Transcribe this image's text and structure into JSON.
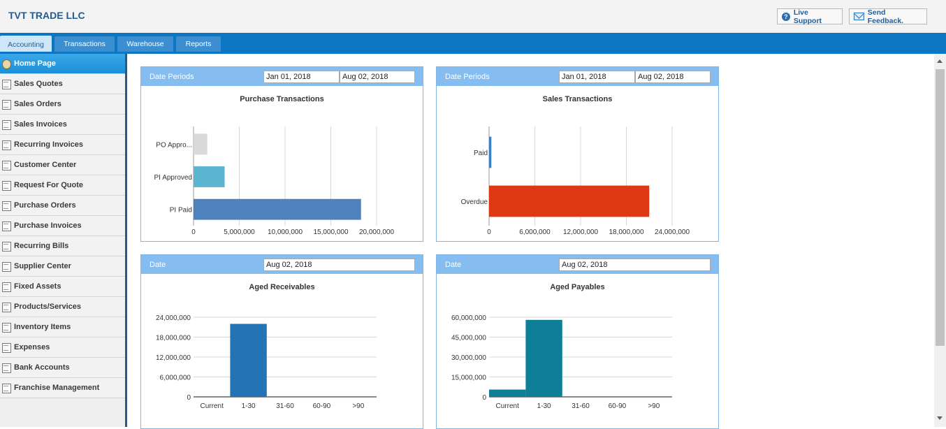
{
  "header": {
    "company": "TVT TRADE LLC",
    "live_support": "Live Support",
    "send_feedback": "Send Feedback."
  },
  "tabs": [
    "Accounting",
    "Transactions",
    "Warehouse",
    "Reports"
  ],
  "sidebar": {
    "items": [
      {
        "label": "Home Page",
        "icon": "home-icon"
      },
      {
        "label": "Sales Quotes",
        "icon": "document-icon"
      },
      {
        "label": "Sales Orders",
        "icon": "document-icon"
      },
      {
        "label": "Sales Invoices",
        "icon": "document-icon"
      },
      {
        "label": "Recurring Invoices",
        "icon": "document-icon"
      },
      {
        "label": "Customer Center",
        "icon": "printer-icon"
      },
      {
        "label": "Request For Quote",
        "icon": "printer-icon"
      },
      {
        "label": "Purchase Orders",
        "icon": "printer-icon"
      },
      {
        "label": "Purchase Invoices",
        "icon": "printer-icon"
      },
      {
        "label": "Recurring Bills",
        "icon": "printer-icon"
      },
      {
        "label": "Supplier Center",
        "icon": "printer-icon"
      },
      {
        "label": "Fixed Assets",
        "icon": "calculator-icon"
      },
      {
        "label": "Products/Services",
        "icon": "printer-icon"
      },
      {
        "label": "Inventory Items",
        "icon": "printer-icon"
      },
      {
        "label": "Expenses",
        "icon": "calculator-icon"
      },
      {
        "label": "Bank Accounts",
        "icon": "bank-icon"
      },
      {
        "label": "Franchise Management",
        "icon": "document-icon"
      }
    ]
  },
  "panels": {
    "purchase": {
      "label": "Date Periods",
      "from": "Jan 01, 2018",
      "to": "Aug 02, 2018",
      "title": "Purchase Transactions"
    },
    "sales": {
      "label": "Date Periods",
      "from": "Jan 01, 2018",
      "to": "Aug 02, 2018",
      "title": "Sales Transactions"
    },
    "receivables": {
      "label": "Date",
      "date": "Aug 02, 2018",
      "title": "Aged Receivables"
    },
    "payables": {
      "label": "Date",
      "date": "Aug 02, 2018",
      "title": "Aged Payables"
    }
  },
  "chart_data": [
    {
      "type": "bar",
      "orientation": "horizontal",
      "title": "Purchase Transactions",
      "categories": [
        "PO Appro...",
        "PI Approved",
        "PI Paid"
      ],
      "values": [
        1500000,
        3400000,
        18300000
      ],
      "colors": [
        "#d9d9d9",
        "#5bb5d0",
        "#4f81bd"
      ],
      "xlim": [
        0,
        20000000
      ],
      "x_ticks": [
        "0",
        "5,000,000",
        "10,000,000",
        "15,000,000",
        "20,000,000"
      ],
      "grid": true
    },
    {
      "type": "bar",
      "orientation": "horizontal",
      "title": "Sales Transactions",
      "categories": [
        "Paid",
        "Overdue"
      ],
      "values": [
        300000,
        21000000
      ],
      "colors": [
        "#3b7fc4",
        "#dd3a13"
      ],
      "xlim": [
        0,
        24000000
      ],
      "x_ticks": [
        "0",
        "6,000,000",
        "12,000,000",
        "18,000,000",
        "24,000,000"
      ],
      "grid": true
    },
    {
      "type": "bar",
      "title": "Aged Receivables",
      "categories": [
        "Current",
        "1-30",
        "31-60",
        "60-90",
        ">90"
      ],
      "values": [
        0,
        22000000,
        0,
        0,
        0
      ],
      "color": "#2474b5",
      "ylim": [
        0,
        24000000
      ],
      "y_ticks": [
        "0",
        "6,000,000",
        "12,000,000",
        "18,000,000",
        "24,000,000"
      ],
      "grid": true
    },
    {
      "type": "area",
      "title": "Aged Payables",
      "categories": [
        "Current",
        "1-30",
        "31-60",
        "60-90",
        ">90"
      ],
      "values": [
        5500000,
        58000000,
        0,
        0,
        0
      ],
      "color": "#0e7f96",
      "ylim": [
        0,
        60000000
      ],
      "y_ticks": [
        "0",
        "15,000,000",
        "30,000,000",
        "45,000,000",
        "60,000,000"
      ],
      "grid": true
    }
  ]
}
